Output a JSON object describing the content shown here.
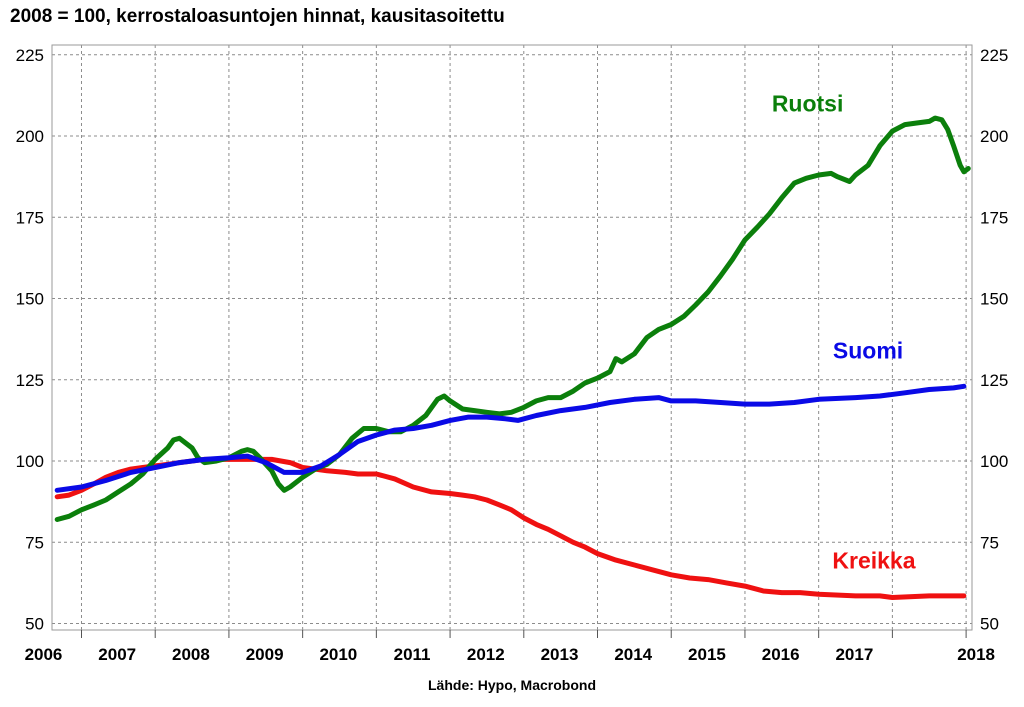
{
  "chart_data": {
    "type": "line",
    "title": "2008 = 100, kerrostaloasuntojen hinnat, kausitasoitettu",
    "source": "Lähde: Hypo, Macrobond",
    "xlabel": "",
    "ylabel": "",
    "ylim": [
      48,
      228
    ],
    "yticks": [
      50,
      75,
      100,
      125,
      150,
      175,
      200,
      225
    ],
    "xlim": [
      2005.6,
      2018.08
    ],
    "year_ticks": [
      2006,
      2007,
      2008,
      2009,
      2010,
      2011,
      2012,
      2013,
      2014,
      2015,
      2016,
      2017,
      2018
    ],
    "year_labels": [
      "2006",
      "2007",
      "2008",
      "2009",
      "2010",
      "2011",
      "2012",
      "2013",
      "2014",
      "2015",
      "2016",
      "2017",
      "2018"
    ],
    "grid": true,
    "right_axis": true,
    "series": [
      {
        "name": "Ruotsi",
        "color": "#0b7f0b",
        "points": [
          [
            2005.67,
            82
          ],
          [
            2005.83,
            83
          ],
          [
            2006.0,
            85
          ],
          [
            2006.17,
            86.5
          ],
          [
            2006.33,
            88
          ],
          [
            2006.5,
            90.5
          ],
          [
            2006.67,
            93
          ],
          [
            2006.83,
            96
          ],
          [
            2007.0,
            100.5
          ],
          [
            2007.17,
            104
          ],
          [
            2007.25,
            106.5
          ],
          [
            2007.33,
            107
          ],
          [
            2007.5,
            104
          ],
          [
            2007.58,
            101
          ],
          [
            2007.67,
            99.5
          ],
          [
            2007.83,
            100
          ],
          [
            2008.0,
            101
          ],
          [
            2008.17,
            103
          ],
          [
            2008.25,
            103.5
          ],
          [
            2008.33,
            103
          ],
          [
            2008.42,
            101
          ],
          [
            2008.58,
            97
          ],
          [
            2008.67,
            93
          ],
          [
            2008.75,
            91
          ],
          [
            2008.83,
            92
          ],
          [
            2009.0,
            95
          ],
          [
            2009.17,
            97.5
          ],
          [
            2009.33,
            99
          ],
          [
            2009.5,
            102
          ],
          [
            2009.67,
            107
          ],
          [
            2009.83,
            110
          ],
          [
            2010.0,
            110
          ],
          [
            2010.17,
            109
          ],
          [
            2010.33,
            109
          ],
          [
            2010.5,
            111
          ],
          [
            2010.67,
            114
          ],
          [
            2010.83,
            119
          ],
          [
            2010.92,
            120
          ],
          [
            2011.0,
            118.5
          ],
          [
            2011.17,
            116
          ],
          [
            2011.33,
            115.5
          ],
          [
            2011.5,
            115
          ],
          [
            2011.67,
            114.5
          ],
          [
            2011.83,
            115
          ],
          [
            2012.0,
            116.5
          ],
          [
            2012.17,
            118.5
          ],
          [
            2012.33,
            119.5
          ],
          [
            2012.5,
            119.5
          ],
          [
            2012.67,
            121.5
          ],
          [
            2012.83,
            124
          ],
          [
            2013.0,
            125.5
          ],
          [
            2013.17,
            127.5
          ],
          [
            2013.25,
            131.5
          ],
          [
            2013.33,
            130.5
          ],
          [
            2013.5,
            133
          ],
          [
            2013.67,
            138
          ],
          [
            2013.83,
            140.5
          ],
          [
            2014.0,
            142
          ],
          [
            2014.17,
            144.5
          ],
          [
            2014.33,
            148
          ],
          [
            2014.5,
            152
          ],
          [
            2014.67,
            157
          ],
          [
            2014.83,
            162
          ],
          [
            2015.0,
            168
          ],
          [
            2015.17,
            172
          ],
          [
            2015.33,
            176
          ],
          [
            2015.5,
            181
          ],
          [
            2015.67,
            185.5
          ],
          [
            2015.83,
            187
          ],
          [
            2016.0,
            188
          ],
          [
            2016.17,
            188.5
          ],
          [
            2016.25,
            187.5
          ],
          [
            2016.42,
            186
          ],
          [
            2016.5,
            188
          ],
          [
            2016.67,
            191
          ],
          [
            2016.83,
            197
          ],
          [
            2017.0,
            201.5
          ],
          [
            2017.17,
            203.5
          ],
          [
            2017.33,
            204
          ],
          [
            2017.5,
            204.5
          ],
          [
            2017.58,
            205.5
          ],
          [
            2017.67,
            205
          ],
          [
            2017.75,
            202
          ],
          [
            2017.83,
            197
          ],
          [
            2017.92,
            191
          ],
          [
            2017.97,
            189
          ],
          [
            2018.03,
            190
          ]
        ]
      },
      {
        "name": "Suomi",
        "color": "#0a0ae6",
        "points": [
          [
            2005.67,
            91
          ],
          [
            2006.0,
            92
          ],
          [
            2006.33,
            94
          ],
          [
            2006.67,
            96.5
          ],
          [
            2007.0,
            98
          ],
          [
            2007.33,
            99.5
          ],
          [
            2007.67,
            100.5
          ],
          [
            2008.0,
            101
          ],
          [
            2008.25,
            101.5
          ],
          [
            2008.5,
            99.5
          ],
          [
            2008.75,
            96.5
          ],
          [
            2009.0,
            96.5
          ],
          [
            2009.25,
            98.5
          ],
          [
            2009.5,
            102
          ],
          [
            2009.75,
            106
          ],
          [
            2010.0,
            108
          ],
          [
            2010.25,
            109.5
          ],
          [
            2010.5,
            110
          ],
          [
            2010.75,
            111
          ],
          [
            2011.0,
            112.5
          ],
          [
            2011.25,
            113.5
          ],
          [
            2011.5,
            113.5
          ],
          [
            2011.75,
            113
          ],
          [
            2011.92,
            112.5
          ],
          [
            2012.17,
            114
          ],
          [
            2012.5,
            115.5
          ],
          [
            2012.83,
            116.5
          ],
          [
            2013.17,
            118
          ],
          [
            2013.5,
            119
          ],
          [
            2013.83,
            119.5
          ],
          [
            2014.0,
            118.5
          ],
          [
            2014.33,
            118.5
          ],
          [
            2014.67,
            118
          ],
          [
            2015.0,
            117.5
          ],
          [
            2015.33,
            117.5
          ],
          [
            2015.67,
            118
          ],
          [
            2016.0,
            119
          ],
          [
            2016.5,
            119.5
          ],
          [
            2016.83,
            120
          ],
          [
            2017.17,
            121
          ],
          [
            2017.5,
            122
          ],
          [
            2017.83,
            122.5
          ],
          [
            2017.97,
            123
          ]
        ]
      },
      {
        "name": "Kreikka",
        "color": "#ef1111",
        "points": [
          [
            2005.67,
            89
          ],
          [
            2005.83,
            89.5
          ],
          [
            2006.0,
            91
          ],
          [
            2006.17,
            93
          ],
          [
            2006.33,
            95
          ],
          [
            2006.5,
            96.5
          ],
          [
            2006.67,
            97.5
          ],
          [
            2006.83,
            98
          ],
          [
            2007.0,
            98.5
          ],
          [
            2007.17,
            99
          ],
          [
            2007.33,
            99.5
          ],
          [
            2007.5,
            100
          ],
          [
            2007.67,
            100.5
          ],
          [
            2008.0,
            100.5
          ],
          [
            2008.33,
            100.5
          ],
          [
            2008.58,
            100.5
          ],
          [
            2008.83,
            99.5
          ],
          [
            2009.0,
            98
          ],
          [
            2009.17,
            97.5
          ],
          [
            2009.33,
            97
          ],
          [
            2009.58,
            96.5
          ],
          [
            2009.75,
            96
          ],
          [
            2010.0,
            96
          ],
          [
            2010.25,
            94.5
          ],
          [
            2010.5,
            92
          ],
          [
            2010.75,
            90.5
          ],
          [
            2011.0,
            90
          ],
          [
            2011.17,
            89.5
          ],
          [
            2011.33,
            89
          ],
          [
            2011.5,
            88
          ],
          [
            2011.67,
            86.5
          ],
          [
            2011.83,
            85
          ],
          [
            2012.0,
            82.5
          ],
          [
            2012.17,
            80.5
          ],
          [
            2012.33,
            79
          ],
          [
            2012.5,
            77
          ],
          [
            2012.67,
            75
          ],
          [
            2012.83,
            73.5
          ],
          [
            2013.0,
            71.5
          ],
          [
            2013.25,
            69.5
          ],
          [
            2013.5,
            68
          ],
          [
            2013.75,
            66.5
          ],
          [
            2014.0,
            65
          ],
          [
            2014.25,
            64
          ],
          [
            2014.5,
            63.5
          ],
          [
            2014.75,
            62.5
          ],
          [
            2015.0,
            61.5
          ],
          [
            2015.25,
            60
          ],
          [
            2015.5,
            59.5
          ],
          [
            2015.75,
            59.5
          ],
          [
            2016.0,
            59
          ],
          [
            2016.5,
            58.5
          ],
          [
            2016.83,
            58.5
          ],
          [
            2017.0,
            58
          ],
          [
            2017.5,
            58.5
          ],
          [
            2017.97,
            58.5
          ]
        ]
      }
    ],
    "series_labels": [
      {
        "text": "Ruotsi",
        "x": 2015.85,
        "y": 207.5,
        "color": "#0b7f0b"
      },
      {
        "text": "Suomi",
        "x": 2016.67,
        "y": 131.5,
        "color": "#0a0ae6"
      },
      {
        "text": "Kreikka",
        "x": 2016.75,
        "y": 67,
        "color": "#ef1111"
      }
    ]
  }
}
